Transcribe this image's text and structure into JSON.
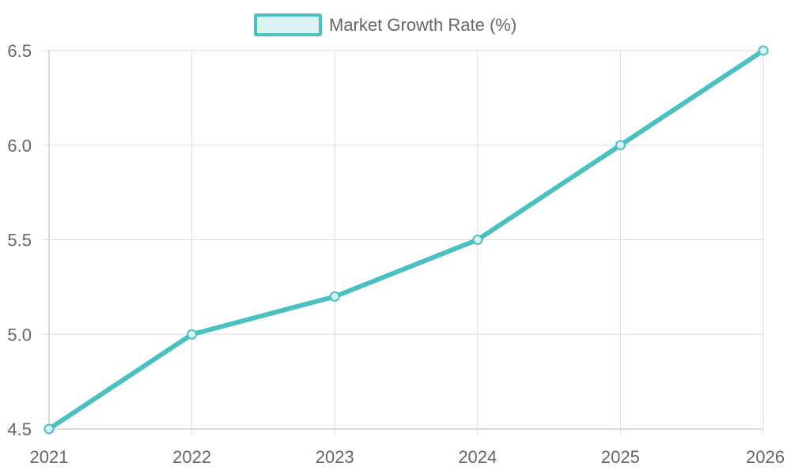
{
  "chart_data": {
    "type": "line",
    "title": "",
    "xlabel": "",
    "ylabel": "",
    "x": [
      "2021",
      "2022",
      "2023",
      "2024",
      "2025",
      "2026"
    ],
    "series": [
      {
        "name": "Market Growth Rate (%)",
        "values": [
          4.5,
          5.0,
          5.2,
          5.5,
          6.0,
          6.5
        ]
      }
    ],
    "ylim": [
      4.5,
      6.5
    ],
    "yticks": [
      "4.5",
      "5.0",
      "5.5",
      "6.0",
      "6.5"
    ],
    "grid": true,
    "legend": "top-center",
    "colors": {
      "line": "#4bc0c0",
      "legend_fill": "#dbf2f2",
      "grid": "#dddddd",
      "text": "#666666"
    }
  }
}
